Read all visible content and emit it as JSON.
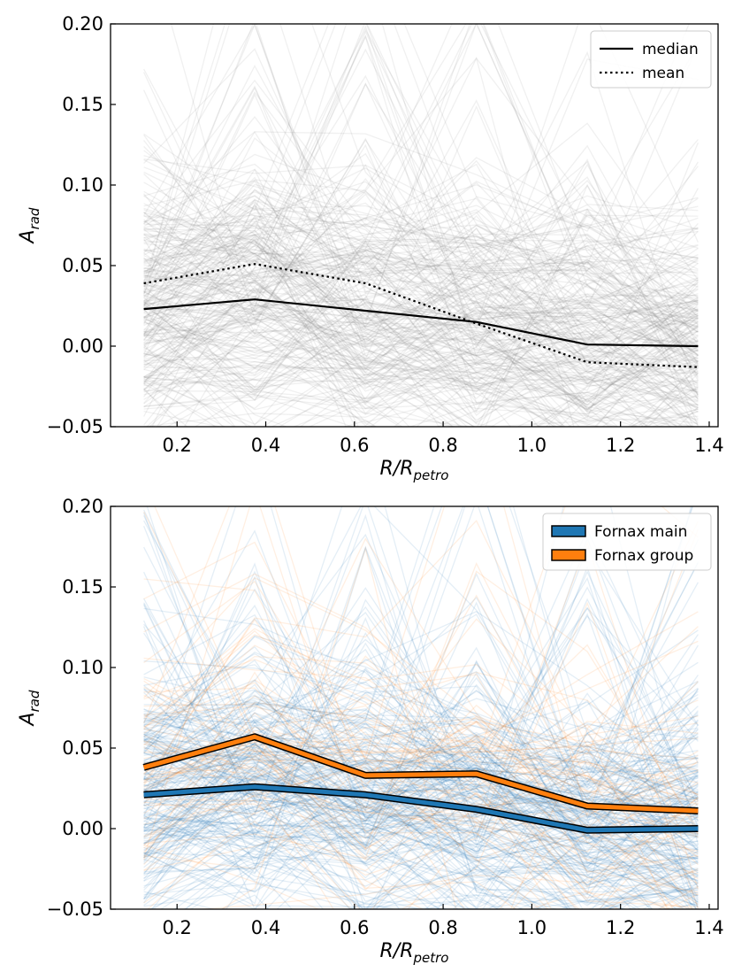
{
  "chart_data": [
    {
      "type": "line",
      "panel": "top",
      "x": [
        0.125,
        0.375,
        0.625,
        0.875,
        1.125,
        1.375
      ],
      "xlim": [
        0.05,
        1.42
      ],
      "ylim": [
        -0.05,
        0.2
      ],
      "xticks": [
        0.2,
        0.4,
        0.6,
        0.8,
        1.0,
        1.2,
        1.4
      ],
      "xtick_labels": [
        "0.2",
        "0.4",
        "0.6",
        "0.8",
        "1.0",
        "1.2",
        "1.4"
      ],
      "yticks": [
        -0.05,
        0.0,
        0.05,
        0.1,
        0.15,
        0.2
      ],
      "ytick_labels": [
        "−0.05",
        "0.00",
        "0.05",
        "0.10",
        "0.15",
        "0.20"
      ],
      "xlabel": "R/R",
      "xlabel_sub": "petro",
      "ylabel": "A",
      "ylabel_sub": "rad",
      "background_profiles": {
        "count": 260,
        "color": "#808080",
        "center": [
          0.023,
          0.029,
          0.022,
          0.015,
          0.002,
          0.0
        ],
        "spread": 0.055
      },
      "series": [
        {
          "name": "median",
          "style": "solid",
          "color": "#000000",
          "values": [
            0.023,
            0.029,
            0.022,
            0.015,
            0.001,
            0.0
          ]
        },
        {
          "name": "mean",
          "style": "dotted",
          "color": "#000000",
          "values": [
            0.039,
            0.051,
            0.039,
            0.014,
            -0.01,
            -0.013
          ]
        }
      ],
      "legend": {
        "placement": "top-right",
        "entries": [
          "median",
          "mean"
        ]
      }
    },
    {
      "type": "line",
      "panel": "bottom",
      "x": [
        0.125,
        0.375,
        0.625,
        0.875,
        1.125,
        1.375
      ],
      "xlim": [
        0.05,
        1.42
      ],
      "ylim": [
        -0.05,
        0.2
      ],
      "xticks": [
        0.2,
        0.4,
        0.6,
        0.8,
        1.0,
        1.2,
        1.4
      ],
      "xtick_labels": [
        "0.2",
        "0.4",
        "0.6",
        "0.8",
        "1.0",
        "1.2",
        "1.4"
      ],
      "yticks": [
        -0.05,
        0.0,
        0.05,
        0.1,
        0.15,
        0.2
      ],
      "ytick_labels": [
        "−0.05",
        "0.00",
        "0.05",
        "0.10",
        "0.15",
        "0.20"
      ],
      "xlabel": "R/R",
      "xlabel_sub": "petro",
      "ylabel": "A",
      "ylabel_sub": "rad",
      "background_profiles": [
        {
          "group": "Fornax main",
          "count": 230,
          "color": "#1f77b4",
          "center": [
            0.021,
            0.026,
            0.021,
            0.012,
            -0.001,
            0.0
          ],
          "spread": 0.055
        },
        {
          "group": "Fornax group",
          "count": 70,
          "color": "#ff7f0e",
          "center": [
            0.038,
            0.057,
            0.033,
            0.034,
            0.014,
            0.011
          ],
          "spread": 0.06
        }
      ],
      "series": [
        {
          "name": "Fornax main",
          "color": "#1f77b4",
          "values": [
            0.021,
            0.026,
            0.021,
            0.012,
            -0.001,
            0.0
          ]
        },
        {
          "name": "Fornax group",
          "color": "#ff7f0e",
          "values": [
            0.038,
            0.057,
            0.033,
            0.034,
            0.014,
            0.011
          ]
        }
      ],
      "legend": {
        "placement": "top-right",
        "entries": [
          "Fornax main",
          "Fornax group"
        ]
      }
    }
  ]
}
